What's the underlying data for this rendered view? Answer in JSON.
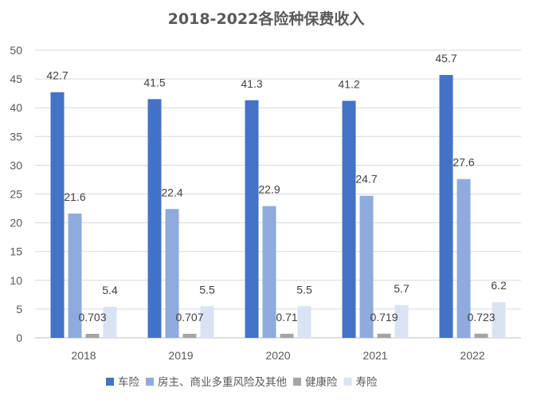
{
  "chart_data": {
    "type": "bar",
    "title": "2018-2022各险种保费收入",
    "categories": [
      "2018",
      "2019",
      "2020",
      "2021",
      "2022"
    ],
    "ylim": [
      0,
      50
    ],
    "yticks": [
      "0",
      "5",
      "10",
      "15",
      "20",
      "25",
      "30",
      "35",
      "40",
      "45",
      "50"
    ],
    "xlabel": "",
    "ylabel": "",
    "grid": true,
    "legend_position": "bottom",
    "series": [
      {
        "name": "车险",
        "color": "#4472c4",
        "values": [
          42.7,
          41.5,
          41.3,
          41.2,
          45.7
        ],
        "labels": [
          "42.7",
          "41.5",
          "41.3",
          "41.2",
          "45.7"
        ]
      },
      {
        "name": "房主、商业多重风险及其他",
        "color": "#8faadc",
        "values": [
          21.6,
          22.4,
          22.9,
          24.7,
          27.6
        ],
        "labels": [
          "21.6",
          "22.4",
          "22.9",
          "24.7",
          "27.6"
        ]
      },
      {
        "name": "健康险",
        "color": "#a5a5a5",
        "values": [
          0.703,
          0.707,
          0.71,
          0.719,
          0.723
        ],
        "labels": [
          "0.703",
          "0.707",
          "0.71",
          "0.719",
          "0.723"
        ]
      },
      {
        "name": "寿险",
        "color": "#dae3f3",
        "values": [
          5.4,
          5.5,
          5.5,
          5.7,
          6.2
        ],
        "labels": [
          "5.4",
          "5.5",
          "5.5",
          "5.7",
          "6.2"
        ]
      }
    ]
  }
}
